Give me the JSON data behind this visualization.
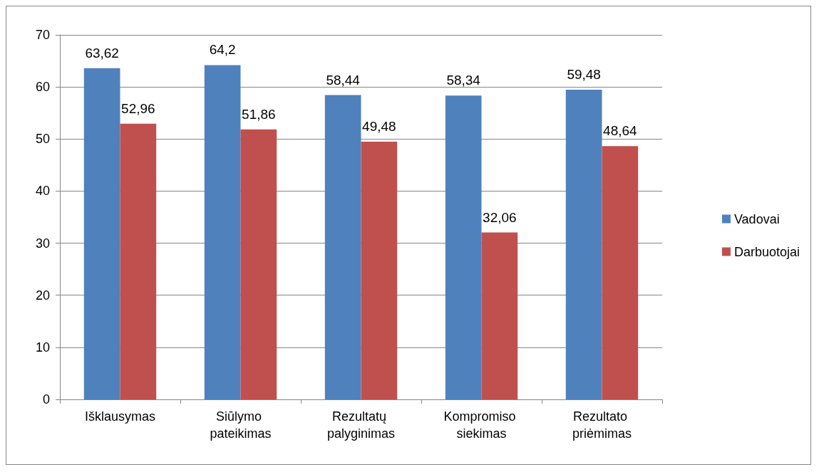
{
  "chart_data": {
    "type": "bar",
    "categories": [
      "Išklausymas",
      "Siūlymo pateikimas",
      "Rezultatų palyginimas",
      "Kompromiso siekimas",
      "Rezultato priėmimas"
    ],
    "series": [
      {
        "name": "Vadovai",
        "color": "#4f81bd",
        "values": [
          63.62,
          64.2,
          58.44,
          58.34,
          59.48
        ],
        "value_labels": [
          "63,62",
          "64,2",
          "58,44",
          "58,34",
          "59,48"
        ]
      },
      {
        "name": "Darbuotojai",
        "color": "#c0504d",
        "values": [
          52.96,
          51.86,
          49.48,
          32.06,
          48.64
        ],
        "value_labels": [
          "52,96",
          "51,86",
          "49,48",
          "32,06",
          "48,64"
        ]
      }
    ],
    "ylim": [
      0,
      70
    ],
    "yticks": [
      0,
      10,
      20,
      30,
      40,
      50,
      60,
      70
    ],
    "grid": "y",
    "legend": "right"
  }
}
